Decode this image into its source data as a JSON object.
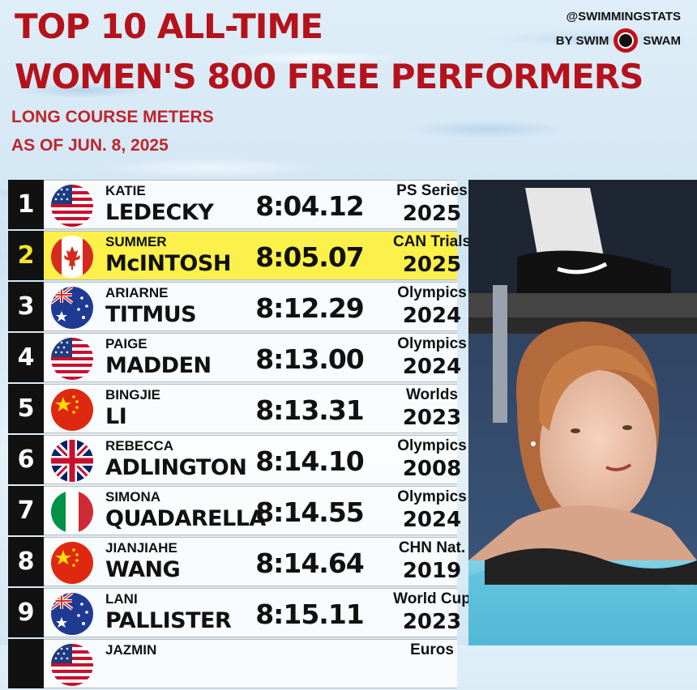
{
  "header": {
    "title_line1": "TOP 10 ALL-TIME",
    "title_line2": "WOMEN'S 800 FREE PERFORMERS",
    "subtitle_line1": "LONG COURSE METERS",
    "subtitle_line2": "AS OF JUN. 8, 2025"
  },
  "brand": {
    "handle": "@SWIMMINGSTATS",
    "by": "BY SWIM",
    "name": "SWAM",
    "logo_icon": "swimswam-logo-icon"
  },
  "colors": {
    "title_red": "#b5121b",
    "highlight_yellow": "#fbf14a",
    "rank_bg": "#111111"
  },
  "rows": [
    {
      "rank": "1",
      "first": "KATIE",
      "last": "LEDECKY",
      "time": "8:04.12",
      "meet": "PS Series",
      "year": "2025",
      "flag": "usa-flag-icon"
    },
    {
      "rank": "2",
      "first": "SUMMER",
      "last": "McINTOSH",
      "time": "8:05.07",
      "meet": "CAN Trials",
      "year": "2025",
      "flag": "canada-flag-icon",
      "highlight": true
    },
    {
      "rank": "3",
      "first": "ARIARNE",
      "last": "TITMUS",
      "time": "8:12.29",
      "meet": "Olympics",
      "year": "2024",
      "flag": "australia-flag-icon"
    },
    {
      "rank": "4",
      "first": "PAIGE",
      "last": "MADDEN",
      "time": "8:13.00",
      "meet": "Olympics",
      "year": "2024",
      "flag": "usa-flag-icon"
    },
    {
      "rank": "5",
      "first": "BINGJIE",
      "last": "LI",
      "time": "8:13.31",
      "meet": "Worlds",
      "year": "2023",
      "flag": "china-flag-icon"
    },
    {
      "rank": "6",
      "first": "REBECCA",
      "last": "ADLINGTON",
      "time": "8:14.10",
      "meet": "Olympics",
      "year": "2008",
      "flag": "uk-flag-icon"
    },
    {
      "rank": "7",
      "first": "SIMONA",
      "last": "QUADARELLA",
      "time": "8:14.55",
      "meet": "Olympics",
      "year": "2024",
      "flag": "italy-flag-icon"
    },
    {
      "rank": "8",
      "first": "JIANJIAHE",
      "last": "WANG",
      "time": "8:14.64",
      "meet": "CHN Nat.",
      "year": "2019",
      "flag": "china-flag-icon"
    },
    {
      "rank": "9",
      "first": "LANI",
      "last": "PALLISTER",
      "time": "8:15.11",
      "meet": "World Cup",
      "year": "2023",
      "flag": "australia-flag-icon"
    },
    {
      "rank": "",
      "first": "JAZMIN",
      "last": "",
      "time": "",
      "meet": "Euros",
      "year": "",
      "flag": "usa-flag-icon"
    }
  ]
}
